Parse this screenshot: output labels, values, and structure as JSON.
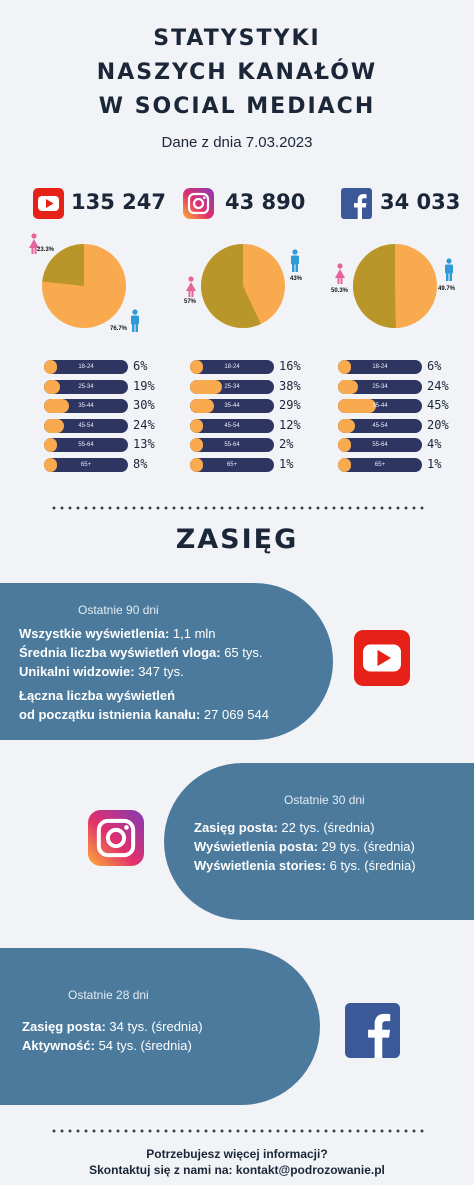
{
  "header": {
    "title_lines": [
      "STATYSTYKI",
      "NASZYCH KANAŁÓW",
      "W SOCIAL MEDIACH"
    ],
    "date": "Dane z dnia 7.03.2023"
  },
  "platforms": [
    {
      "icon": "youtube-icon",
      "brand_color": "#e62117",
      "followers": "135 247",
      "gender": {
        "female_pct": 23.3,
        "male_pct": 76.7,
        "female_label": "23.3%",
        "male_label": "76.7%"
      },
      "ages": [
        {
          "label": "18-24",
          "value": 6,
          "text": "6%"
        },
        {
          "label": "25-34",
          "value": 19,
          "text": "19%"
        },
        {
          "label": "35-44",
          "value": 30,
          "text": "30%"
        },
        {
          "label": "45-54",
          "value": 24,
          "text": "24%"
        },
        {
          "label": "55-64",
          "value": 13,
          "text": "13%"
        },
        {
          "label": "65+",
          "value": 8,
          "text": "8%"
        }
      ]
    },
    {
      "icon": "instagram-icon",
      "brand_color": "#d6249f",
      "followers": "43 890",
      "gender": {
        "female_pct": 57,
        "male_pct": 43,
        "female_label": "57%",
        "male_label": "43%"
      },
      "ages": [
        {
          "label": "18-24",
          "value": 16,
          "text": "16%"
        },
        {
          "label": "25-34",
          "value": 38,
          "text": "38%"
        },
        {
          "label": "35-44",
          "value": 29,
          "text": "29%"
        },
        {
          "label": "45-54",
          "value": 12,
          "text": "12%"
        },
        {
          "label": "55-64",
          "value": 2,
          "text": "2%"
        },
        {
          "label": "65+",
          "value": 1,
          "text": "1%"
        }
      ]
    },
    {
      "icon": "facebook-icon",
      "brand_color": "#3b5998",
      "followers": "34 033",
      "gender": {
        "female_pct": 50.3,
        "male_pct": 49.7,
        "female_label": "50.3%",
        "male_label": "49.7%"
      },
      "ages": [
        {
          "label": "18-24",
          "value": 6,
          "text": "6%"
        },
        {
          "label": "25-34",
          "value": 24,
          "text": "24%"
        },
        {
          "label": "35-44",
          "value": 45,
          "text": "45%"
        },
        {
          "label": "45-54",
          "value": 20,
          "text": "20%"
        },
        {
          "label": "55-64",
          "value": 4,
          "text": "4%"
        },
        {
          "label": "65+",
          "value": 1,
          "text": "1%"
        }
      ]
    }
  ],
  "colors": {
    "female": "#b8962a",
    "male": "#f9aa4e",
    "bar_bg": "#2e3561",
    "panel": "#4b7a9c",
    "female_icon": "#e6639b",
    "male_icon": "#2f9bd6"
  },
  "reach": {
    "heading": "ZASIĘG",
    "youtube": {
      "period": "Ostatnie 90 dni",
      "lines": [
        {
          "label": "Wszystkie wyświetlenia:",
          "value": " 1,1 mln"
        },
        {
          "label": "Średnia liczba wyświetleń vloga:",
          "value": " 65 tys."
        },
        {
          "label": "Unikalni widzowie:",
          "value": " 347 tys."
        }
      ],
      "total_label_1": "Łączna liczba wyświetleń",
      "total_label_2": "od początku istnienia kanału:",
      "total_value": " 27 069 544"
    },
    "instagram": {
      "period": "Ostatnie 30 dni",
      "lines": [
        {
          "label": "Zasięg posta:",
          "value": " 22 tys. (średnia)"
        },
        {
          "label": "Wyświetlenia posta:",
          "value": " 29 tys. (średnia)"
        },
        {
          "label": "Wyświetlenia stories:",
          "value": " 6 tys. (średnia)"
        }
      ]
    },
    "facebook": {
      "period": "Ostatnie 28 dni",
      "lines": [
        {
          "label": "Zasięg posta:",
          "value": " 34 tys. (średnia)"
        },
        {
          "label": "Aktywność:",
          "value": " 54 tys. (średnia)"
        }
      ]
    }
  },
  "footer": {
    "line1": "Potrzebujesz więcej informacji?",
    "line2": "Skontaktuj się z nami na: kontakt@podrozowanie.pl"
  }
}
